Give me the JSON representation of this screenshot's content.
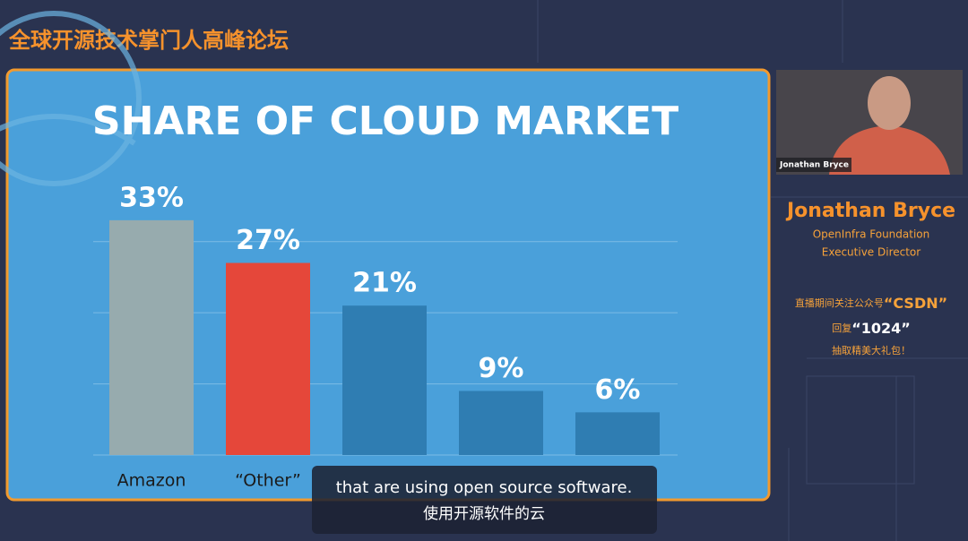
{
  "header": {
    "title": "全球开源技术掌门人高峰论坛"
  },
  "chart_data": {
    "type": "bar",
    "title": "SHARE OF CLOUD MARKET",
    "categories": [
      "Amazon",
      "“Other”",
      null,
      null,
      null
    ],
    "values": [
      33,
      27,
      21,
      9,
      6
    ],
    "value_labels": [
      "33%",
      "27%",
      "21%",
      "9%",
      "6%"
    ],
    "colors": [
      "#97abae",
      "#e5473a",
      "#2f7db2",
      "#2f7db2",
      "#2f7db2"
    ],
    "ylim": [
      0,
      35
    ],
    "yticks": [
      0,
      10,
      20,
      30
    ],
    "grid": true
  },
  "speaker": {
    "video_tag": "Jonathan Bryce",
    "name": "Jonathan Bryce",
    "organization": "OpenInfra Foundation",
    "role": "Executive Director"
  },
  "promo": {
    "line1_prefix": "直播期间关注公众号",
    "line1_emph": "“CSDN”",
    "line2_prefix": "回复",
    "line2_emph": "“1024”",
    "line3": "抽取精美大礼包！"
  },
  "captions": {
    "english": "that are using open source software.",
    "chinese": "使用开源软件的云"
  }
}
